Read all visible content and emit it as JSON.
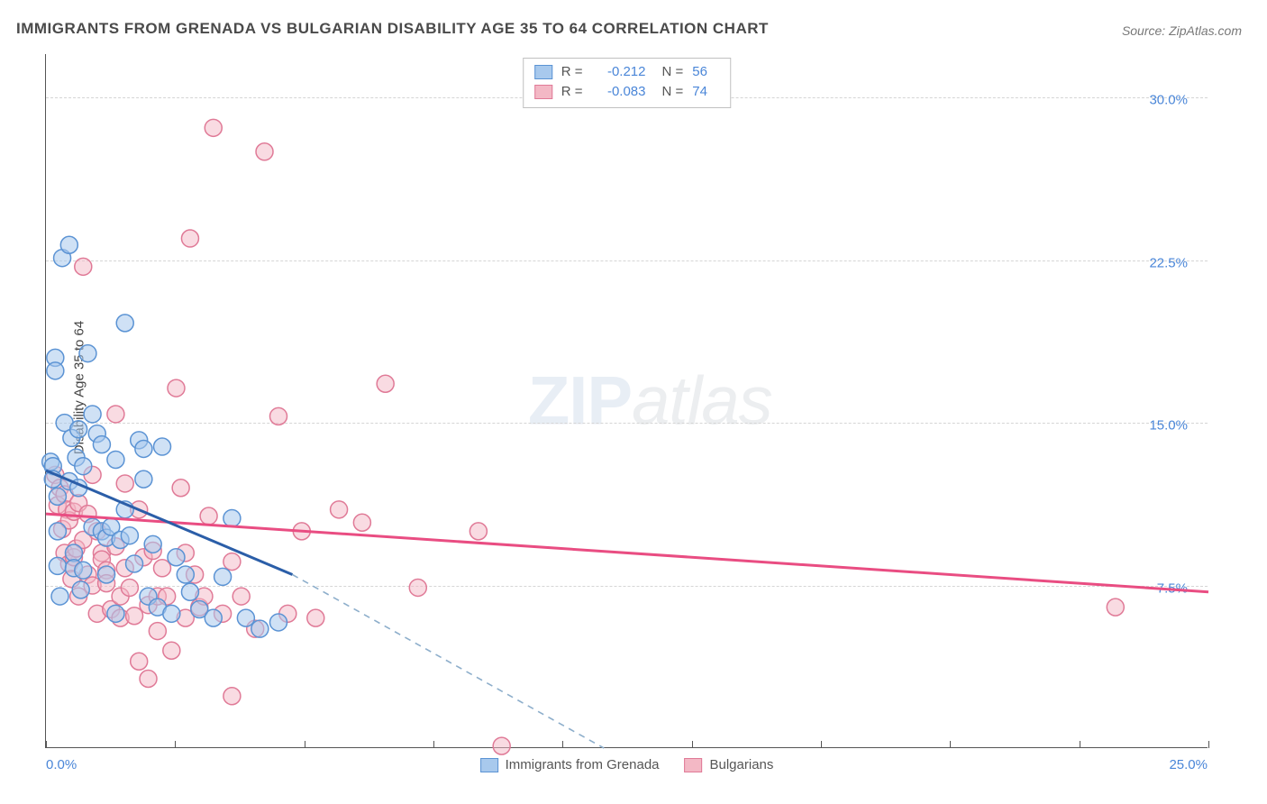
{
  "title": "IMMIGRANTS FROM GRENADA VS BULGARIAN DISABILITY AGE 35 TO 64 CORRELATION CHART",
  "source_label": "Source:",
  "source_value": "ZipAtlas.com",
  "ylabel": "Disability Age 35 to 64",
  "watermark": {
    "zip": "ZIP",
    "atlas": "atlas"
  },
  "chart": {
    "type": "scatter",
    "xlim": [
      0,
      25
    ],
    "ylim": [
      0,
      32
    ],
    "x_ticks": [
      0,
      2.78,
      5.56,
      8.33,
      11.11,
      13.89,
      16.67,
      19.44,
      22.22,
      25
    ],
    "x_tick_labels": {
      "first": "0.0%",
      "last": "25.0%"
    },
    "y_gridlines": [
      {
        "value": 7.5,
        "label": "7.5%"
      },
      {
        "value": 15.0,
        "label": "15.0%"
      },
      {
        "value": 22.5,
        "label": "22.5%"
      },
      {
        "value": 30.0,
        "label": "30.0%"
      }
    ],
    "grid_color": "#d5d5d5",
    "axis_color": "#555555",
    "tick_label_color": "#4a86d8",
    "background_color": "#ffffff",
    "marker_radius": 9.5
  },
  "series": [
    {
      "name": "Immigrants from Grenada",
      "key": "grenada",
      "fill": "#a8c9ed",
      "fill_opacity": 0.55,
      "stroke": "#5b93d4",
      "line_color": "#2b5ea8",
      "line_dash_color": "#8daecb",
      "R": "-0.212",
      "N": "56",
      "regression": {
        "x1": 0,
        "y1": 12.8,
        "x2": 5.3,
        "y2": 8.0,
        "x2_ext": 12.0,
        "y2_ext": 0
      },
      "points": [
        [
          0.1,
          13.2
        ],
        [
          0.15,
          13.0
        ],
        [
          0.15,
          12.4
        ],
        [
          0.2,
          18.0
        ],
        [
          0.2,
          17.4
        ],
        [
          0.25,
          11.6
        ],
        [
          0.25,
          10.0
        ],
        [
          0.25,
          8.4
        ],
        [
          0.3,
          7.0
        ],
        [
          0.35,
          22.6
        ],
        [
          0.4,
          15.0
        ],
        [
          0.5,
          23.2
        ],
        [
          0.5,
          12.3
        ],
        [
          0.55,
          14.3
        ],
        [
          0.6,
          9.0
        ],
        [
          0.6,
          8.3
        ],
        [
          0.65,
          13.4
        ],
        [
          0.7,
          14.7
        ],
        [
          0.7,
          12.0
        ],
        [
          0.75,
          7.3
        ],
        [
          0.8,
          13.0
        ],
        [
          0.8,
          8.2
        ],
        [
          0.9,
          18.2
        ],
        [
          1.0,
          15.4
        ],
        [
          1.0,
          10.2
        ],
        [
          1.1,
          14.5
        ],
        [
          1.2,
          14.0
        ],
        [
          1.2,
          10.0
        ],
        [
          1.3,
          9.7
        ],
        [
          1.3,
          8.0
        ],
        [
          1.4,
          10.2
        ],
        [
          1.5,
          13.3
        ],
        [
          1.5,
          6.2
        ],
        [
          1.6,
          9.6
        ],
        [
          1.7,
          19.6
        ],
        [
          1.7,
          11.0
        ],
        [
          1.8,
          9.8
        ],
        [
          1.9,
          8.5
        ],
        [
          2.0,
          14.2
        ],
        [
          2.1,
          13.8
        ],
        [
          2.1,
          12.4
        ],
        [
          2.2,
          7.0
        ],
        [
          2.3,
          9.4
        ],
        [
          2.4,
          6.5
        ],
        [
          2.5,
          13.9
        ],
        [
          2.7,
          6.2
        ],
        [
          2.8,
          8.8
        ],
        [
          3.0,
          8.0
        ],
        [
          3.1,
          7.2
        ],
        [
          3.3,
          6.4
        ],
        [
          3.6,
          6.0
        ],
        [
          3.8,
          7.9
        ],
        [
          4.0,
          10.6
        ],
        [
          4.3,
          6.0
        ],
        [
          4.6,
          5.5
        ],
        [
          5.0,
          5.8
        ]
      ]
    },
    {
      "name": "Bulgarians",
      "key": "bulgarians",
      "fill": "#f3b8c5",
      "fill_opacity": 0.5,
      "stroke": "#e07a97",
      "line_color": "#e94d82",
      "R": "-0.083",
      "N": "74",
      "regression": {
        "x1": 0,
        "y1": 10.8,
        "x2": 25,
        "y2": 7.2
      },
      "points": [
        [
          0.2,
          12.6
        ],
        [
          0.25,
          11.2
        ],
        [
          0.3,
          12.0
        ],
        [
          0.35,
          10.1
        ],
        [
          0.4,
          11.7
        ],
        [
          0.4,
          9.0
        ],
        [
          0.45,
          11.0
        ],
        [
          0.5,
          10.5
        ],
        [
          0.5,
          8.5
        ],
        [
          0.55,
          7.8
        ],
        [
          0.6,
          10.9
        ],
        [
          0.6,
          8.8
        ],
        [
          0.65,
          9.2
        ],
        [
          0.7,
          11.3
        ],
        [
          0.7,
          7.0
        ],
        [
          0.8,
          22.2
        ],
        [
          0.8,
          9.6
        ],
        [
          0.9,
          10.8
        ],
        [
          0.9,
          8.0
        ],
        [
          1.0,
          12.6
        ],
        [
          1.0,
          7.5
        ],
        [
          1.1,
          10.0
        ],
        [
          1.1,
          6.2
        ],
        [
          1.2,
          9.0
        ],
        [
          1.2,
          8.7
        ],
        [
          1.3,
          8.2
        ],
        [
          1.3,
          7.6
        ],
        [
          1.4,
          6.4
        ],
        [
          1.5,
          15.4
        ],
        [
          1.5,
          9.3
        ],
        [
          1.6,
          7.0
        ],
        [
          1.6,
          6.0
        ],
        [
          1.7,
          12.2
        ],
        [
          1.7,
          8.3
        ],
        [
          1.8,
          7.4
        ],
        [
          1.9,
          6.1
        ],
        [
          2.0,
          11.0
        ],
        [
          2.0,
          4.0
        ],
        [
          2.1,
          8.8
        ],
        [
          2.2,
          6.6
        ],
        [
          2.2,
          3.2
        ],
        [
          2.3,
          9.1
        ],
        [
          2.4,
          7.0
        ],
        [
          2.4,
          5.4
        ],
        [
          2.5,
          8.3
        ],
        [
          2.6,
          7.0
        ],
        [
          2.7,
          4.5
        ],
        [
          2.8,
          16.6
        ],
        [
          2.9,
          12.0
        ],
        [
          3.0,
          9.0
        ],
        [
          3.0,
          6.0
        ],
        [
          3.1,
          23.5
        ],
        [
          3.2,
          8.0
        ],
        [
          3.3,
          6.5
        ],
        [
          3.4,
          7.0
        ],
        [
          3.5,
          10.7
        ],
        [
          3.6,
          28.6
        ],
        [
          3.8,
          6.2
        ],
        [
          4.0,
          8.6
        ],
        [
          4.0,
          2.4
        ],
        [
          4.2,
          7.0
        ],
        [
          4.5,
          5.5
        ],
        [
          4.7,
          27.5
        ],
        [
          5.0,
          15.3
        ],
        [
          5.2,
          6.2
        ],
        [
          5.5,
          10.0
        ],
        [
          5.8,
          6.0
        ],
        [
          6.3,
          11.0
        ],
        [
          6.8,
          10.4
        ],
        [
          7.3,
          16.8
        ],
        [
          8.0,
          7.4
        ],
        [
          9.3,
          10.0
        ],
        [
          9.8,
          0.1
        ],
        [
          23.0,
          6.5
        ]
      ]
    }
  ],
  "bottom_legend": [
    {
      "key": "grenada",
      "label": "Immigrants from Grenada"
    },
    {
      "key": "bulgarians",
      "label": "Bulgarians"
    }
  ]
}
